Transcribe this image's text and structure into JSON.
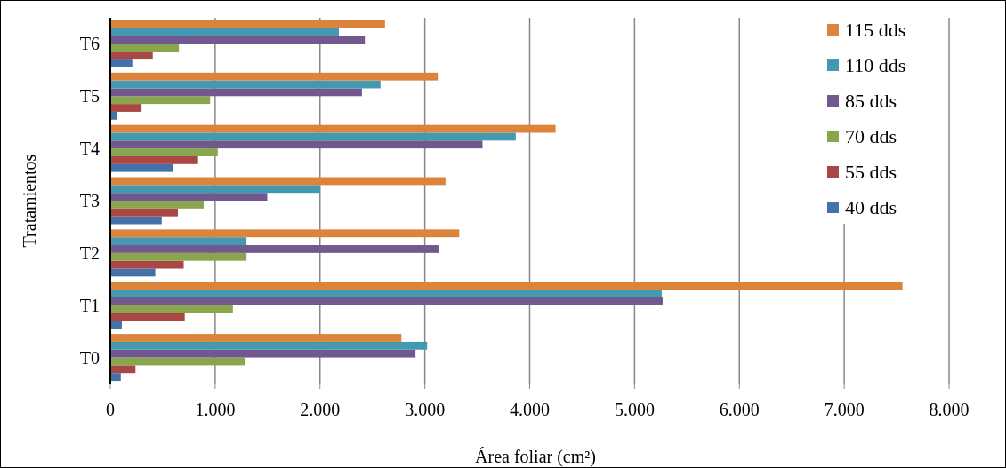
{
  "chart_data": {
    "type": "bar",
    "orientation": "horizontal",
    "xlabel": "Área foliar (cm²)",
    "ylabel": "Tratamientos",
    "categories": [
      "T6",
      "T5",
      "T4",
      "T3",
      "T2",
      "T1",
      "T0"
    ],
    "series": [
      {
        "name": "40 dds",
        "color": "#4472a8",
        "values": [
          210,
          67,
          602,
          490,
          429,
          110,
          100
        ]
      },
      {
        "name": "55 dds",
        "color": "#aa4644",
        "values": [
          405,
          298,
          837,
          645,
          700,
          710,
          240
        ]
      },
      {
        "name": "70 dds",
        "color": "#8aa64d",
        "values": [
          654,
          952,
          1025,
          891,
          1299,
          1169,
          1282
        ]
      },
      {
        "name": "85 dds",
        "color": "#71588f",
        "values": [
          2428,
          2400,
          3550,
          1497,
          3130,
          5268,
          2911
        ]
      },
      {
        "name": "110 dds",
        "color": "#4299b0",
        "values": [
          2180,
          2577,
          3867,
          1999,
          1299,
          5259,
          3022
        ]
      },
      {
        "name": "115 dds",
        "color": "#dd843c",
        "values": [
          2620,
          3124,
          4247,
          3197,
          3328,
          7556,
          2777
        ]
      }
    ],
    "xlim": [
      0,
      8000
    ],
    "xticks": [
      0,
      {
        "value": 1000,
        "label": "1.000"
      },
      {
        "value": 2000,
        "label": "2.000"
      },
      {
        "value": 3000,
        "label": "3.000"
      },
      {
        "value": 4000,
        "label": "4.000"
      },
      {
        "value": 5000,
        "label": "5.000"
      },
      {
        "value": 6000,
        "label": "6.000"
      },
      {
        "value": 7000,
        "label": "7.000"
      },
      {
        "value": 8000,
        "label": "8.000"
      }
    ],
    "grid": "x",
    "legend": "top right"
  }
}
